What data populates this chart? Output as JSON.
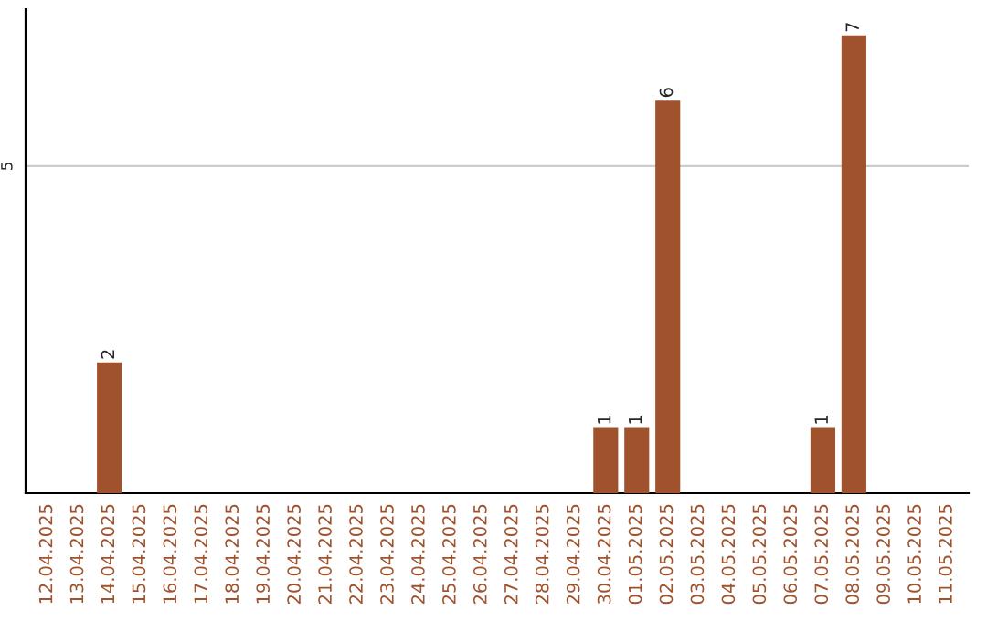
{
  "chart_data": {
    "type": "bar",
    "categories": [
      "12.04.2025",
      "13.04.2025",
      "14.04.2025",
      "15.04.2025",
      "16.04.2025",
      "17.04.2025",
      "18.04.2025",
      "19.04.2025",
      "20.04.2025",
      "21.04.2025",
      "22.04.2025",
      "23.04.2025",
      "24.04.2025",
      "25.04.2025",
      "26.04.2025",
      "27.04.2025",
      "28.04.2025",
      "29.04.2025",
      "30.04.2025",
      "01.05.2025",
      "02.05.2025",
      "03.05.2025",
      "04.05.2025",
      "05.05.2025",
      "06.05.2025",
      "07.05.2025",
      "08.05.2025",
      "09.05.2025",
      "10.05.2025",
      "11.05.2025"
    ],
    "values": [
      null,
      null,
      2,
      null,
      null,
      null,
      null,
      null,
      null,
      null,
      null,
      null,
      null,
      null,
      null,
      null,
      null,
      null,
      1,
      1,
      6,
      null,
      null,
      null,
      null,
      1,
      7,
      null,
      null,
      null
    ],
    "value_labels": [
      null,
      null,
      "2",
      null,
      null,
      null,
      null,
      null,
      null,
      null,
      null,
      null,
      null,
      null,
      null,
      null,
      null,
      null,
      "1",
      "1",
      "6",
      null,
      null,
      null,
      null,
      "1",
      "7",
      null,
      null,
      null
    ],
    "color": "#a0522d",
    "ylim": [
      0,
      7.4
    ],
    "yticks": [
      5
    ],
    "grid": "y",
    "legend": false
  }
}
